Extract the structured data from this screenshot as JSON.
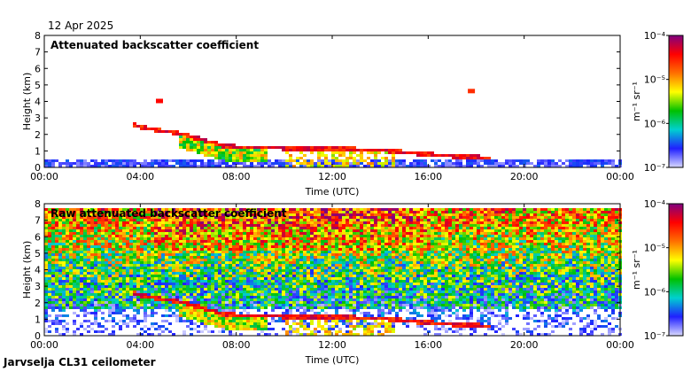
{
  "date": "12 Apr 2025",
  "station": "Jarvselja CL31 ceilometer",
  "colors": {
    "background": "#ffffff",
    "frame": "#000000"
  },
  "chart_data": [
    {
      "type": "heatmap",
      "title": "Attenuated backscatter coefficient",
      "xlabel": "Time (UTC)",
      "ylabel": "Height (km)",
      "xlim": [
        0,
        24
      ],
      "ylim": [
        0,
        8
      ],
      "x_ticks": [
        "00:00",
        "04:00",
        "08:00",
        "12:00",
        "16:00",
        "20:00",
        "00:00"
      ],
      "y_ticks": [
        "0",
        "1",
        "2",
        "3",
        "4",
        "5",
        "6",
        "7",
        "8"
      ],
      "colorbar": {
        "label": "m⁻¹ sr⁻¹",
        "scale": "log",
        "range": [
          1e-07,
          0.0001
        ],
        "ticks": [
          "10⁻⁷",
          "10⁻⁶",
          "10⁻⁵",
          "10⁻⁴"
        ],
        "colors": [
          "#d8d8ff",
          "#2020ff",
          "#00d0d0",
          "#00c000",
          "#ffff00",
          "#ff7000",
          "#ff0000",
          "#800080"
        ]
      },
      "features": [
        {
          "name": "near-surface noise layer",
          "t_start": 0,
          "t_end": 24,
          "h_bottom": 0,
          "h_top": 0.45,
          "level": 0.15
        },
        {
          "name": "elevated cloud/aerosol layer",
          "points": [
            [
              3.6,
              2.5
            ],
            [
              4.5,
              2.2
            ],
            [
              5.5,
              2.0
            ],
            [
              6.5,
              1.6
            ],
            [
              7.5,
              1.2
            ],
            [
              9,
              1.1
            ],
            [
              12,
              1.05
            ],
            [
              14,
              0.95
            ],
            [
              15.5,
              0.75
            ],
            [
              17,
              0.6
            ],
            [
              18.5,
              0.5
            ]
          ],
          "level": 0.7
        },
        {
          "name": "isolated echo",
          "t": 4.8,
          "h": 4.0,
          "level": 0.85
        },
        {
          "name": "isolated echo",
          "t": 17.8,
          "h": 4.6,
          "level": 0.8
        }
      ]
    },
    {
      "type": "heatmap",
      "title": "Raw attenuated backscatter coefficient",
      "xlabel": "Time (UTC)",
      "ylabel": "Height (km)",
      "xlim": [
        0,
        24
      ],
      "ylim": [
        0,
        8
      ],
      "x_ticks": [
        "00:00",
        "04:00",
        "08:00",
        "12:00",
        "16:00",
        "20:00",
        "00:00"
      ],
      "y_ticks": [
        "0",
        "1",
        "2",
        "3",
        "4",
        "5",
        "6",
        "7",
        "8"
      ],
      "colorbar": {
        "label": "m⁻¹ sr⁻¹",
        "scale": "log",
        "range": [
          1e-07,
          0.0001
        ],
        "ticks": [
          "10⁻⁷",
          "10⁻⁶",
          "10⁻⁵",
          "10⁻⁴"
        ],
        "colors": [
          "#d8d8ff",
          "#2020ff",
          "#00d0d0",
          "#00c000",
          "#ffff00",
          "#ff7000",
          "#ff0000",
          "#800080"
        ]
      },
      "features": [
        {
          "name": "noise field",
          "t_start": 0,
          "t_end": 24,
          "h_bottom": 0,
          "h_top": 7.7,
          "level": 0.45
        },
        {
          "name": "elevated cloud/aerosol layer",
          "points": [
            [
              3.6,
              2.5
            ],
            [
              4.5,
              2.2
            ],
            [
              5.5,
              2.0
            ],
            [
              6.5,
              1.6
            ],
            [
              7.5,
              1.2
            ],
            [
              9,
              1.1
            ],
            [
              12,
              1.05
            ],
            [
              14,
              0.95
            ],
            [
              15.5,
              0.75
            ],
            [
              17,
              0.6
            ],
            [
              18.5,
              0.5
            ]
          ],
          "level": 0.7
        }
      ]
    }
  ]
}
